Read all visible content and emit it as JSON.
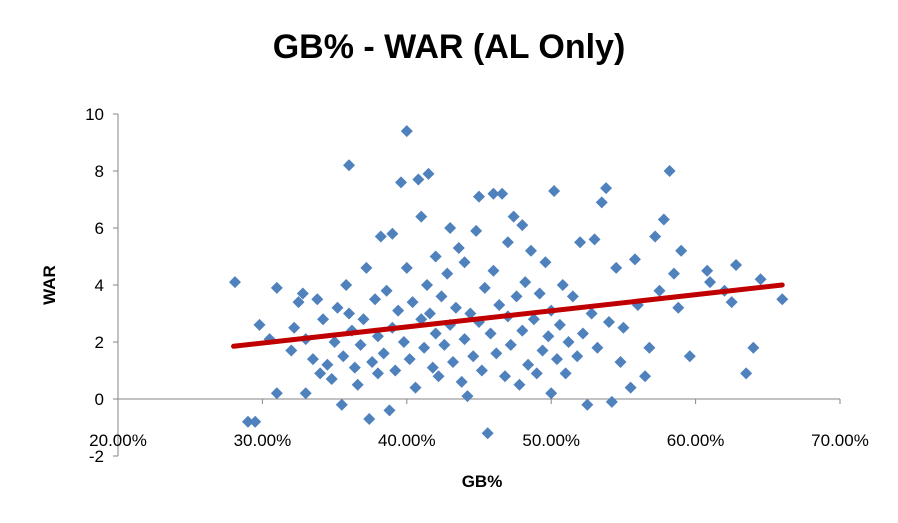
{
  "chart_data": {
    "type": "scatter",
    "title": "GB% - WAR (AL Only)",
    "xlabel": "GB%",
    "ylabel": "WAR",
    "xlim": [
      0.2,
      0.7
    ],
    "ylim": [
      -2,
      10
    ],
    "x_ticks": [
      0.2,
      0.3,
      0.4,
      0.5,
      0.6,
      0.7
    ],
    "x_tick_labels": [
      "20.00%",
      "30.00%",
      "40.00%",
      "50.00%",
      "60.00%",
      "70.00%"
    ],
    "y_ticks": [
      -2,
      0,
      2,
      4,
      6,
      8,
      10
    ],
    "y_tick_labels": [
      "-2",
      "0",
      "2",
      "4",
      "6",
      "8",
      "10"
    ],
    "grid": false,
    "legend": "none",
    "colors": {
      "points": "#4f81bd",
      "trendline": "#c00000"
    },
    "trendline": {
      "x": [
        0.28,
        0.66
      ],
      "y": [
        1.85,
        4.0
      ]
    },
    "points": [
      [
        0.281,
        4.1
      ],
      [
        0.29,
        -0.8
      ],
      [
        0.295,
        -0.8
      ],
      [
        0.298,
        2.6
      ],
      [
        0.305,
        2.1
      ],
      [
        0.31,
        3.9
      ],
      [
        0.31,
        0.2
      ],
      [
        0.32,
        1.7
      ],
      [
        0.322,
        2.5
      ],
      [
        0.325,
        3.4
      ],
      [
        0.328,
        3.7
      ],
      [
        0.33,
        2.1
      ],
      [
        0.33,
        0.2
      ],
      [
        0.335,
        1.4
      ],
      [
        0.338,
        3.5
      ],
      [
        0.34,
        0.9
      ],
      [
        0.342,
        2.8
      ],
      [
        0.345,
        1.2
      ],
      [
        0.348,
        0.7
      ],
      [
        0.35,
        2.0
      ],
      [
        0.352,
        3.2
      ],
      [
        0.355,
        -0.2
      ],
      [
        0.356,
        1.5
      ],
      [
        0.358,
        4.0
      ],
      [
        0.36,
        8.2
      ],
      [
        0.36,
        3.0
      ],
      [
        0.362,
        2.4
      ],
      [
        0.364,
        1.1
      ],
      [
        0.366,
        0.5
      ],
      [
        0.368,
        1.9
      ],
      [
        0.37,
        2.8
      ],
      [
        0.372,
        4.6
      ],
      [
        0.374,
        -0.7
      ],
      [
        0.376,
        1.3
      ],
      [
        0.378,
        3.5
      ],
      [
        0.38,
        2.2
      ],
      [
        0.38,
        0.9
      ],
      [
        0.382,
        5.7
      ],
      [
        0.384,
        1.6
      ],
      [
        0.386,
        3.8
      ],
      [
        0.388,
        -0.4
      ],
      [
        0.39,
        2.5
      ],
      [
        0.39,
        5.8
      ],
      [
        0.392,
        1.0
      ],
      [
        0.394,
        3.1
      ],
      [
        0.396,
        7.6
      ],
      [
        0.398,
        2.0
      ],
      [
        0.4,
        9.4
      ],
      [
        0.4,
        4.6
      ],
      [
        0.402,
        1.4
      ],
      [
        0.404,
        3.4
      ],
      [
        0.406,
        0.4
      ],
      [
        0.408,
        7.7
      ],
      [
        0.41,
        2.8
      ],
      [
        0.41,
        6.4
      ],
      [
        0.412,
        1.8
      ],
      [
        0.414,
        4.0
      ],
      [
        0.415,
        7.9
      ],
      [
        0.416,
        3.0
      ],
      [
        0.418,
        1.1
      ],
      [
        0.42,
        2.3
      ],
      [
        0.42,
        5.0
      ],
      [
        0.422,
        0.8
      ],
      [
        0.424,
        3.6
      ],
      [
        0.426,
        1.9
      ],
      [
        0.428,
        4.4
      ],
      [
        0.43,
        2.6
      ],
      [
        0.43,
        6.0
      ],
      [
        0.432,
        1.3
      ],
      [
        0.434,
        3.2
      ],
      [
        0.436,
        5.3
      ],
      [
        0.438,
        0.6
      ],
      [
        0.44,
        2.1
      ],
      [
        0.44,
        4.8
      ],
      [
        0.442,
        0.1
      ],
      [
        0.444,
        3.0
      ],
      [
        0.446,
        1.5
      ],
      [
        0.448,
        5.9
      ],
      [
        0.45,
        2.7
      ],
      [
        0.45,
        7.1
      ],
      [
        0.452,
        1.0
      ],
      [
        0.454,
        3.9
      ],
      [
        0.456,
        -1.2
      ],
      [
        0.458,
        2.3
      ],
      [
        0.46,
        7.2
      ],
      [
        0.46,
        4.5
      ],
      [
        0.462,
        1.6
      ],
      [
        0.464,
        3.3
      ],
      [
        0.466,
        7.2
      ],
      [
        0.468,
        0.8
      ],
      [
        0.47,
        2.9
      ],
      [
        0.47,
        5.5
      ],
      [
        0.472,
        1.9
      ],
      [
        0.474,
        6.4
      ],
      [
        0.476,
        3.6
      ],
      [
        0.478,
        0.5
      ],
      [
        0.48,
        2.4
      ],
      [
        0.48,
        6.1
      ],
      [
        0.482,
        4.1
      ],
      [
        0.484,
        1.2
      ],
      [
        0.486,
        5.2
      ],
      [
        0.488,
        2.8
      ],
      [
        0.49,
        0.9
      ],
      [
        0.492,
        3.7
      ],
      [
        0.494,
        1.7
      ],
      [
        0.496,
        4.8
      ],
      [
        0.498,
        2.2
      ],
      [
        0.5,
        0.2
      ],
      [
        0.5,
        3.1
      ],
      [
        0.502,
        7.3
      ],
      [
        0.504,
        1.4
      ],
      [
        0.506,
        2.6
      ],
      [
        0.508,
        4.0
      ],
      [
        0.51,
        0.9
      ],
      [
        0.512,
        2.0
      ],
      [
        0.515,
        3.6
      ],
      [
        0.518,
        1.5
      ],
      [
        0.52,
        5.5
      ],
      [
        0.522,
        2.3
      ],
      [
        0.525,
        -0.2
      ],
      [
        0.528,
        3.0
      ],
      [
        0.53,
        5.6
      ],
      [
        0.532,
        1.8
      ],
      [
        0.535,
        6.9
      ],
      [
        0.538,
        7.4
      ],
      [
        0.54,
        2.7
      ],
      [
        0.542,
        -0.1
      ],
      [
        0.545,
        4.6
      ],
      [
        0.548,
        1.3
      ],
      [
        0.55,
        2.5
      ],
      [
        0.555,
        0.4
      ],
      [
        0.558,
        4.9
      ],
      [
        0.56,
        3.3
      ],
      [
        0.565,
        0.8
      ],
      [
        0.568,
        1.8
      ],
      [
        0.572,
        5.7
      ],
      [
        0.575,
        3.8
      ],
      [
        0.578,
        6.3
      ],
      [
        0.582,
        8.0
      ],
      [
        0.585,
        4.4
      ],
      [
        0.588,
        3.2
      ],
      [
        0.59,
        5.2
      ],
      [
        0.596,
        1.5
      ],
      [
        0.608,
        4.5
      ],
      [
        0.61,
        4.1
      ],
      [
        0.62,
        3.8
      ],
      [
        0.625,
        3.4
      ],
      [
        0.628,
        4.7
      ],
      [
        0.635,
        0.9
      ],
      [
        0.64,
        1.8
      ],
      [
        0.645,
        4.2
      ],
      [
        0.66,
        3.5
      ]
    ]
  }
}
